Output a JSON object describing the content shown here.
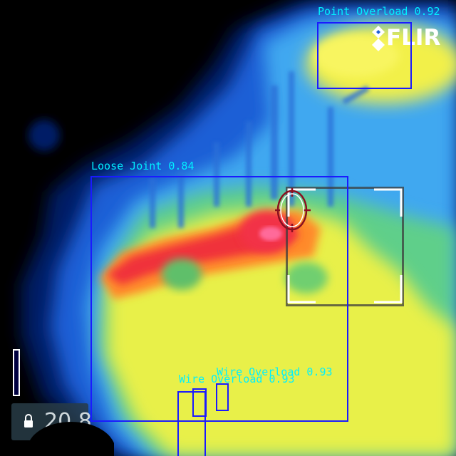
{
  "brand": {
    "logo_text": "FLIR"
  },
  "detections": [
    {
      "id": "point-overload",
      "label": "Point Overload 0.92"
    },
    {
      "id": "loose-joint",
      "label": "Loose Joint 0.84"
    },
    {
      "id": "wire-overload-a",
      "label": "Wire Overload 0.93"
    },
    {
      "id": "wire-overload-b",
      "label": "Wire Overload 0.93"
    }
  ],
  "overlay": {
    "lock_value": "20.8",
    "spot_icon": "crosshair-ellipse-icon",
    "lock_icon": "lock-icon"
  },
  "colors": {
    "box": "#1a1aff",
    "label": "#00f0ff"
  }
}
